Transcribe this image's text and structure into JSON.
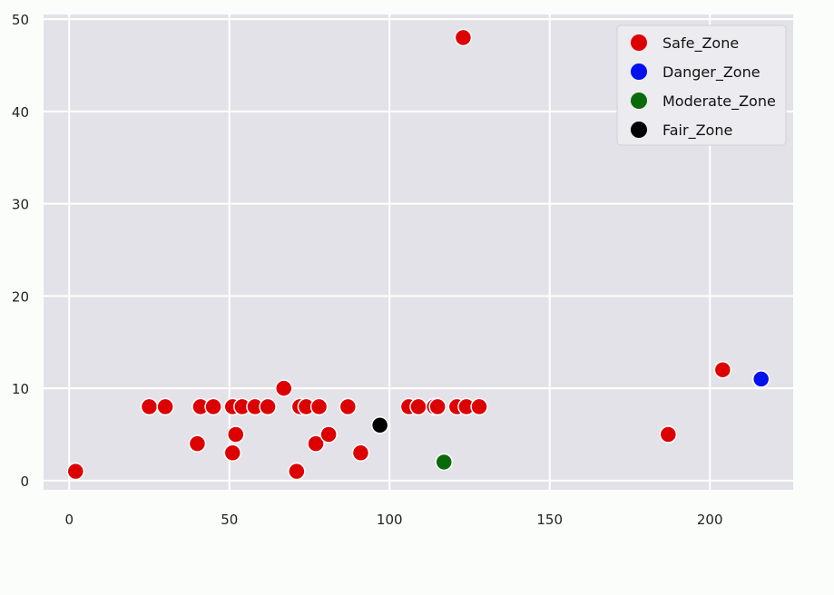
{
  "chart_data": {
    "type": "scatter",
    "title": "",
    "xlabel": "",
    "ylabel": "",
    "xlim": [
      -8,
      226
    ],
    "ylim": [
      -1,
      50.5
    ],
    "x_ticks": [
      0,
      50,
      100,
      150,
      200
    ],
    "y_ticks": [
      0,
      10,
      20,
      30,
      40,
      50
    ],
    "grid": true,
    "legend_position": "top-right",
    "series": [
      {
        "name": "Safe_Zone",
        "color": "#dd0000",
        "points": [
          [
            2,
            1
          ],
          [
            25,
            8
          ],
          [
            30,
            8
          ],
          [
            40,
            4
          ],
          [
            41,
            8
          ],
          [
            45,
            8
          ],
          [
            51,
            3
          ],
          [
            51,
            8
          ],
          [
            52,
            5
          ],
          [
            54,
            8
          ],
          [
            58,
            8
          ],
          [
            62,
            8
          ],
          [
            67,
            10
          ],
          [
            71,
            1
          ],
          [
            72,
            8
          ],
          [
            74,
            8
          ],
          [
            77,
            4
          ],
          [
            78,
            8
          ],
          [
            81,
            5
          ],
          [
            87,
            8
          ],
          [
            91,
            3
          ],
          [
            106,
            8
          ],
          [
            109,
            8
          ],
          [
            114,
            8
          ],
          [
            115,
            8
          ],
          [
            121,
            8
          ],
          [
            124,
            8
          ],
          [
            128,
            8
          ],
          [
            123,
            48
          ],
          [
            187,
            5
          ],
          [
            204,
            12
          ]
        ]
      },
      {
        "name": "Danger_Zone",
        "color": "#0011ee",
        "points": [
          [
            216,
            11
          ]
        ]
      },
      {
        "name": "Moderate_Zone",
        "color": "#0a6a0a",
        "points": [
          [
            117,
            2
          ]
        ]
      },
      {
        "name": "Fair_Zone",
        "color": "#000000",
        "points": [
          [
            97,
            6
          ]
        ]
      }
    ]
  }
}
